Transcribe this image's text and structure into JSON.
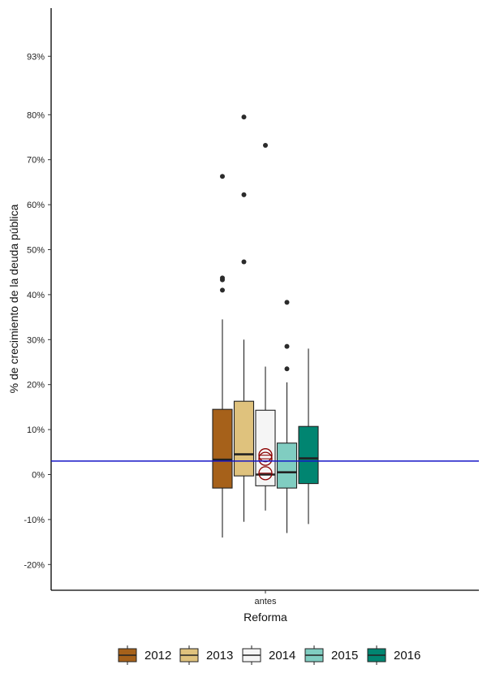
{
  "chart_data": {
    "type": "boxplot",
    "title": "",
    "xlabel": "Reforma",
    "ylabel": "% de crecimiento de la deuda pública",
    "categories": [
      "antes"
    ],
    "ylim": [
      -25,
      103
    ],
    "yticks": [
      -20,
      -10,
      0,
      10,
      20,
      30,
      40,
      50,
      60,
      70,
      80,
      93
    ],
    "ytick_labels": [
      "-20%",
      "-10%",
      "0%",
      "10%",
      "20%",
      "30%",
      "40%",
      "50%",
      "60%",
      "70%",
      "80%",
      "93%"
    ],
    "reference_line": {
      "y": 3,
      "color": "#1515c8"
    },
    "legend_position": "bottom",
    "series": [
      {
        "name": "2012",
        "color": "#a6611a",
        "category": "antes",
        "whisker_low": -14,
        "q1": -3,
        "median": 3.3,
        "q3": 14.5,
        "whisker_high": 34.5,
        "outliers": [
          41,
          43.3,
          43.7,
          66.3
        ],
        "means": []
      },
      {
        "name": "2013",
        "color": "#dfc27d",
        "category": "antes",
        "whisker_low": -10.5,
        "q1": -0.3,
        "median": 4.5,
        "q3": 16.3,
        "whisker_high": 30,
        "outliers": [
          47.3,
          62.2,
          79.5
        ],
        "means": []
      },
      {
        "name": "2014",
        "color": "#f5f5f5",
        "category": "antes",
        "whisker_low": -8,
        "q1": -2.5,
        "median": 0,
        "q3": 14.3,
        "whisker_high": 24,
        "outliers": [
          73.2
        ],
        "means": [
          0.3,
          3.5,
          4.3
        ]
      },
      {
        "name": "2015",
        "color": "#80cdc1",
        "category": "antes",
        "whisker_low": -13,
        "q1": -3,
        "median": 0.5,
        "q3": 7,
        "whisker_high": 20.5,
        "outliers": [
          23.5,
          28.5,
          38.3
        ],
        "means": []
      },
      {
        "name": "2016",
        "color": "#018571",
        "category": "antes",
        "whisker_low": -11,
        "q1": -2,
        "median": 3.6,
        "q3": 10.7,
        "whisker_high": 28,
        "outliers": [],
        "means": []
      }
    ]
  }
}
